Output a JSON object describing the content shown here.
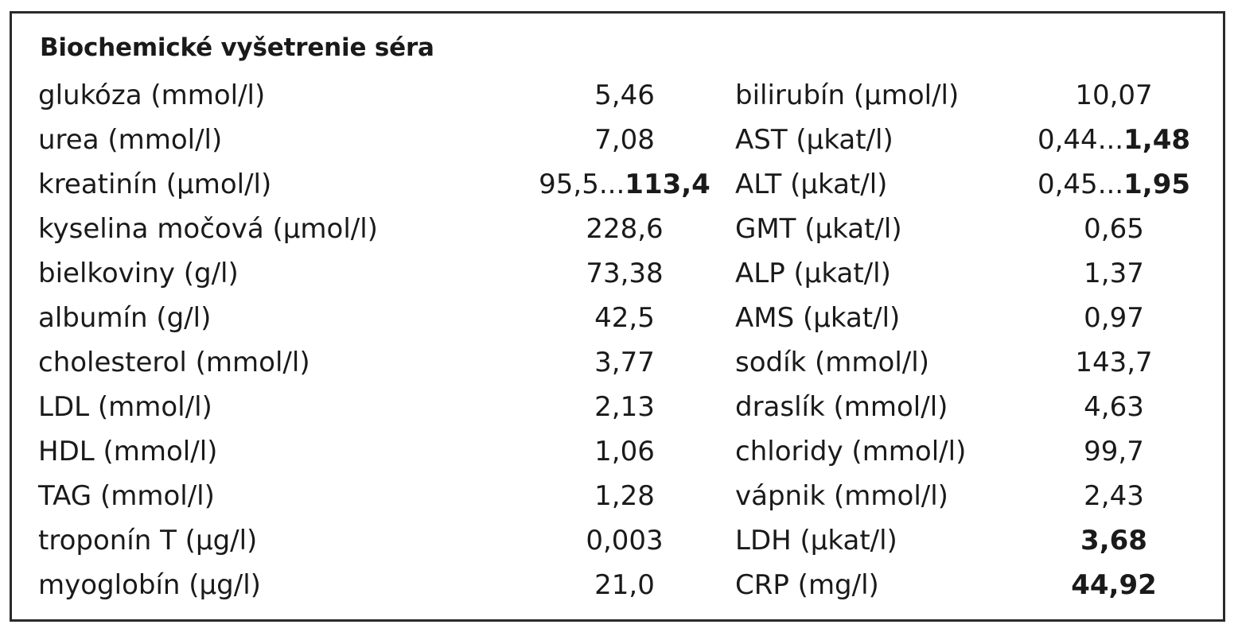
{
  "title": "Biochemické vyšetrenie séra",
  "rows": [
    {
      "left_label": "glukóza (mmol/l)",
      "left_value": "5,46",
      "right_label": "bilirubín (μmol/l)",
      "right_value": "10,07"
    },
    {
      "left_label": "urea (mmol/l)",
      "left_value": "7,08",
      "right_label": "AST (μkat/l)",
      "right_value_pre": "0,44...",
      "right_value_bold": "1,48"
    },
    {
      "left_label": "kreatinín (μmol/l)",
      "left_value_pre": "95,5...",
      "left_value_bold": "113,4",
      "right_label": "ALT (μkat/l)",
      "right_value_pre": "0,45...",
      "right_value_bold": "1,95"
    },
    {
      "left_label": "kyselina močová (μmol/l)",
      "left_value": "228,6",
      "right_label": "GMT (μkat/l)",
      "right_value": "0,65"
    },
    {
      "left_label": "bielkoviny (g/l)",
      "left_value": "73,38",
      "right_label": "ALP (μkat/l)",
      "right_value": "1,37"
    },
    {
      "left_label": "albumín (g/l)",
      "left_value": "42,5",
      "right_label": "AMS (μkat/l)",
      "right_value": "0,97"
    },
    {
      "left_label": "cholesterol (mmol/l)",
      "left_value": "3,77",
      "right_label": "sodík (mmol/l)",
      "right_value": "143,7"
    },
    {
      "left_label": "LDL (mmol/l)",
      "left_value": "2,13",
      "right_label": "draslík (mmol/l)",
      "right_value": "4,63"
    },
    {
      "left_label": "HDL (mmol/l)",
      "left_value": "1,06",
      "right_label": "chloridy (mmol/l)",
      "right_value": "99,7"
    },
    {
      "left_label": "TAG (mmol/l)",
      "left_value": "1,28",
      "right_label": "vápnik (mmol/l)",
      "right_value": "2,43"
    },
    {
      "left_label": "troponín T (μg/l)",
      "left_value": "0,003",
      "right_label": "LDH (μkat/l)",
      "right_value_bold": "3,68"
    },
    {
      "left_label": "myoglobín (μg/l)",
      "left_value": "21,0",
      "right_label": "CRP (mg/l)",
      "right_value_bold": "44,92"
    }
  ]
}
